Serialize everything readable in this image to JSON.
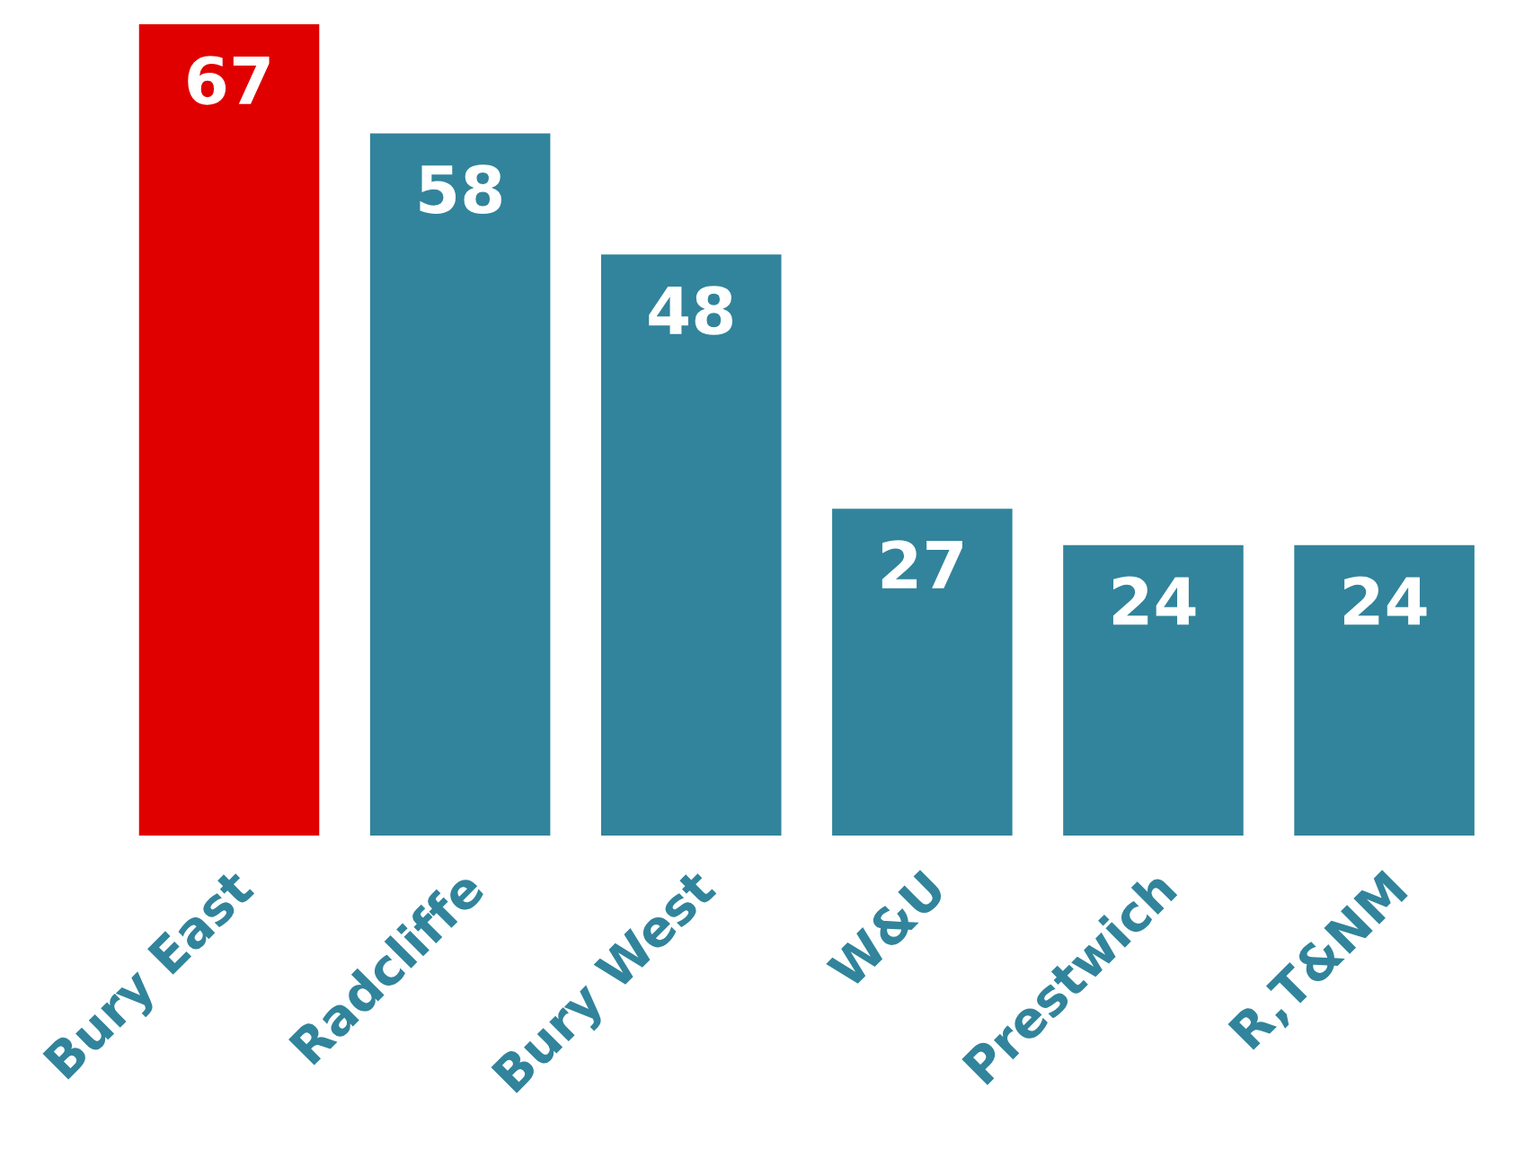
{
  "chart_data": {
    "type": "bar",
    "categories": [
      "Bury East",
      "Radcliffe",
      "Bury West",
      "W&U",
      "Prestwich",
      "R,T&NM"
    ],
    "values": [
      67,
      58,
      48,
      27,
      24,
      24
    ],
    "colors": [
      "#e00000",
      "#31849b",
      "#31849b",
      "#31849b",
      "#31849b",
      "#31849b"
    ],
    "data_labels": true,
    "tick_labels": "x"
  }
}
